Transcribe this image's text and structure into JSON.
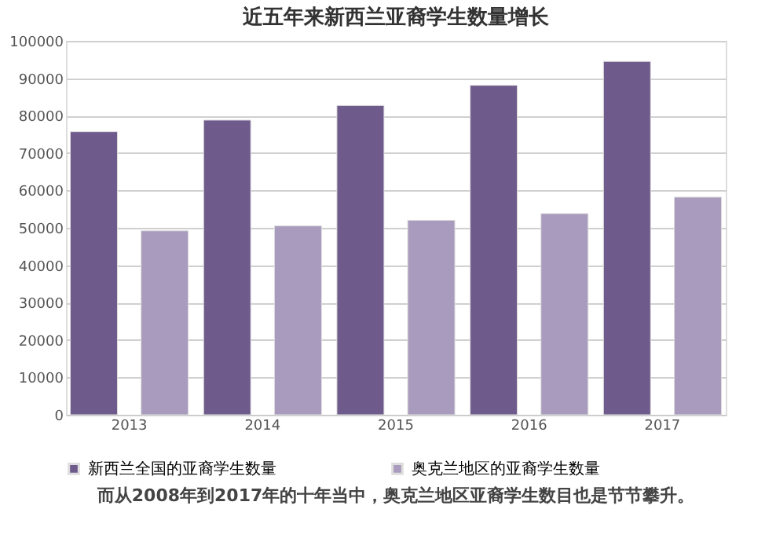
{
  "chart_data": {
    "type": "bar",
    "title": "近五年来新西兰亚裔学生数量增长",
    "categories": [
      "2013",
      "2014",
      "2015",
      "2016",
      "2017"
    ],
    "series": [
      {
        "name": "新西兰全国的亚裔学生数量",
        "color": "#6f5a8c",
        "values": [
          75700,
          78800,
          82700,
          88100,
          94500
        ]
      },
      {
        "name": "奥克兰地区的亚裔学生数量",
        "color": "#a89bbd",
        "values": [
          49200,
          50500,
          52000,
          53800,
          58200
        ]
      }
    ],
    "ylim": [
      0,
      100000
    ],
    "yticks": [
      0,
      10000,
      20000,
      30000,
      40000,
      50000,
      60000,
      70000,
      80000,
      90000,
      100000
    ],
    "grid": "y",
    "legend": "bottom",
    "annotations": [
      "而从2008年到2017年的十年当中，奥克兰地区亚裔学生数目也是节节攀升。"
    ]
  }
}
